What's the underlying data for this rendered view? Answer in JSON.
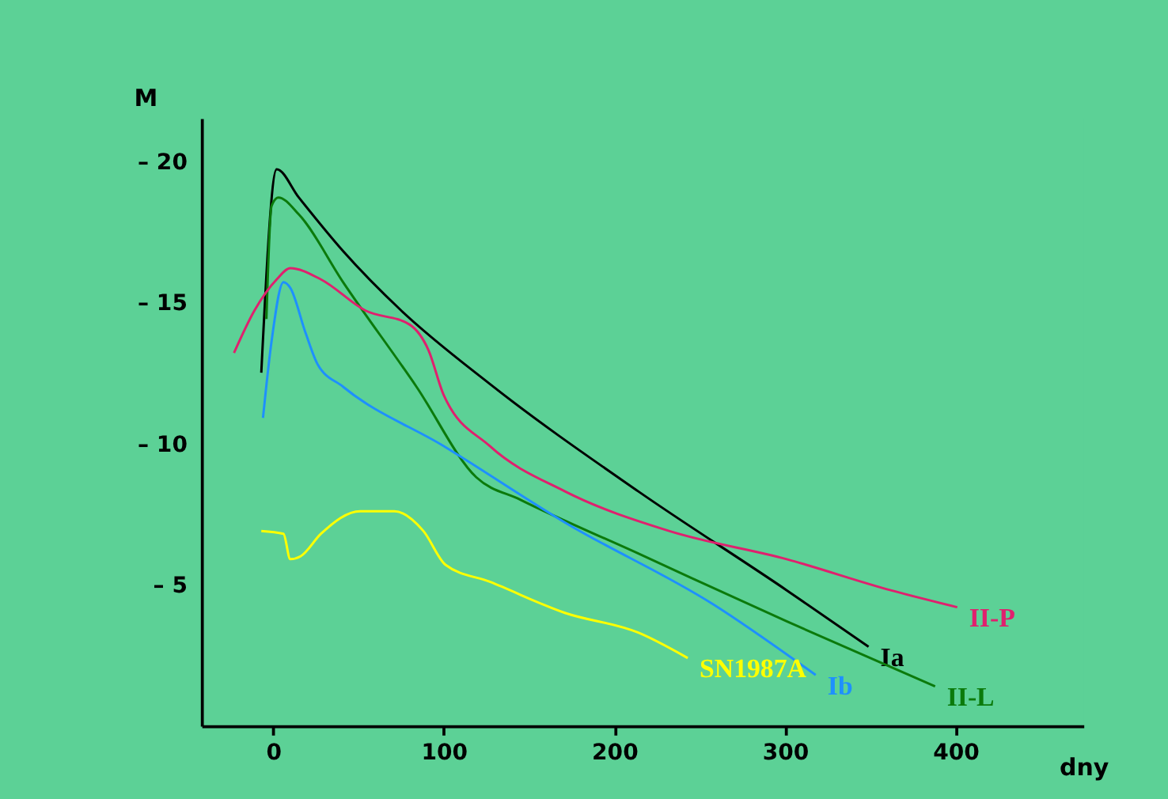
{
  "chart_data": {
    "type": "line",
    "xlabel": "dny",
    "ylabel": "M",
    "xlim": [
      -42,
      475
    ],
    "ylim": [
      0,
      -21.5
    ],
    "xticks": [
      0,
      100,
      200,
      300,
      400
    ],
    "yticks": [
      {
        "value": -20,
        "label": "– 20"
      },
      {
        "value": -15,
        "label": "– 15"
      },
      {
        "value": -10,
        "label": "– 10"
      },
      {
        "value": -5,
        "label": "– 5"
      }
    ],
    "grid": false,
    "legend": false,
    "marker": "none",
    "line_style": "solid",
    "series": [
      {
        "name": "Ia",
        "color": "#000000",
        "x": [
          -7,
          2,
          15,
          41,
          75,
          127,
          214,
          301,
          349
        ],
        "values": [
          -12.5,
          -19.7,
          -18.7,
          -16.8,
          -14.7,
          -12.1,
          -8.3,
          -4.8,
          -2.8
        ]
      },
      {
        "name": "II-L",
        "color": "#0b7a0b",
        "x": [
          -4,
          -1,
          3,
          15,
          41,
          84,
          119,
          145,
          214,
          301,
          388
        ],
        "values": [
          -14.4,
          -18.4,
          -18.7,
          -18.1,
          -15.7,
          -12.0,
          -8.8,
          -8.0,
          -6.1,
          -3.7,
          -1.4
        ]
      },
      {
        "name": "II-P",
        "color": "#e0206e",
        "x": [
          -23,
          -11,
          2,
          10,
          28,
          54,
          80,
          91,
          100,
          127,
          171,
          232,
          301,
          362,
          401
        ],
        "values": [
          -13.2,
          -14.7,
          -15.8,
          -16.2,
          -15.8,
          -14.7,
          -14.2,
          -13.3,
          -11.7,
          -9.9,
          -8.3,
          -6.9,
          -5.9,
          -4.8,
          -4.2
        ]
      },
      {
        "name": "Ib",
        "color": "#1e90ff",
        "x": [
          -6,
          -1,
          6,
          10,
          19,
          26,
          41,
          100,
          171,
          258,
          318
        ],
        "values": [
          -10.9,
          -13.6,
          -15.7,
          -15.5,
          -13.9,
          -12.8,
          -12.0,
          -9.9,
          -7.2,
          -4.3,
          -1.8
        ]
      },
      {
        "name": "SN1987A",
        "color": "#ffff00",
        "x": [
          -7,
          6,
          10,
          16,
          28,
          51,
          71,
          88,
          101,
          127,
          171,
          214,
          243
        ],
        "values": [
          -6.9,
          -6.8,
          -5.9,
          -6.0,
          -6.8,
          -7.6,
          -7.6,
          -6.9,
          -5.7,
          -5.1,
          -4.0,
          -3.3,
          -2.4
        ]
      }
    ]
  }
}
